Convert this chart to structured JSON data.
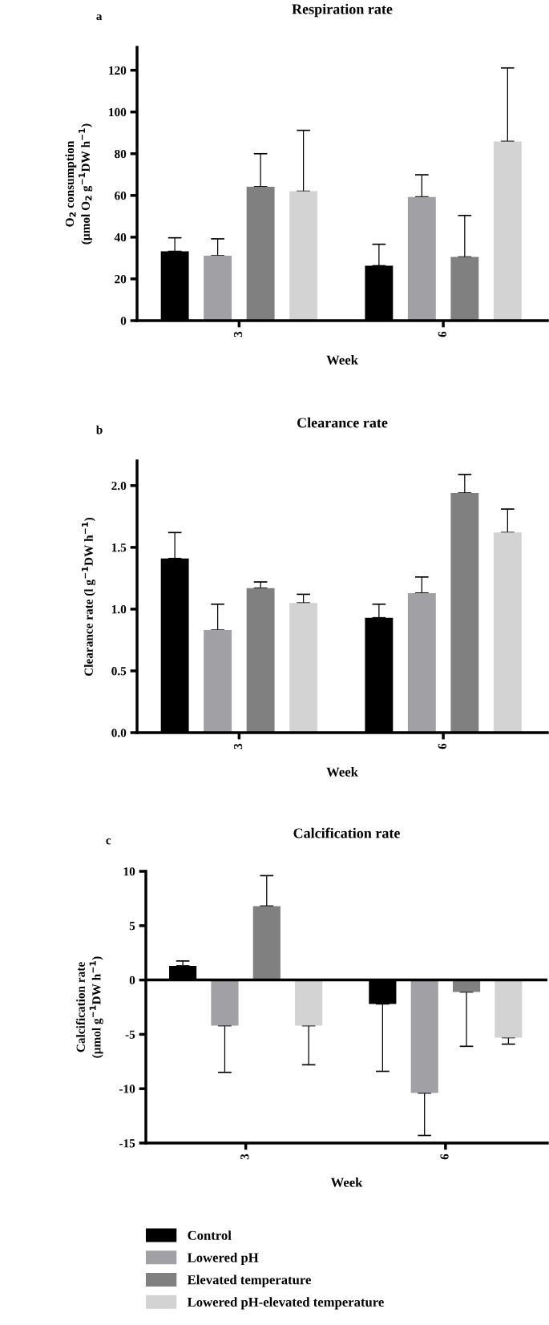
{
  "chart_data": [
    {
      "type": "bar",
      "title": "Respiration rate",
      "annotations": [
        "a"
      ],
      "xlabel": "Week",
      "ylabel": "O$_{2}$ consumption\n(µmol O$_{2}$ g$^{−1}$DW h$^{−1}$)",
      "categories": [
        "3",
        "6"
      ],
      "ylim": [
        0,
        131
      ],
      "yticks": [
        0,
        20,
        40,
        60,
        80,
        100,
        120
      ],
      "grid": false,
      "legend": false,
      "series": [
        {
          "color": "#000000",
          "values": [
            33.2,
            26.3
          ],
          "errors": [
            [
              33.2,
              39.7
            ],
            [
              26.3,
              36.6
            ]
          ]
        },
        {
          "color": "#a1a1a5",
          "values": [
            31.1,
            59.3
          ],
          "errors": [
            [
              31.1,
              39.2
            ],
            [
              59.3,
              69.9
            ]
          ]
        },
        {
          "color": "#808080",
          "values": [
            64.2,
            30.5
          ],
          "errors": [
            [
              64.2,
              80.0
            ],
            [
              30.5,
              50.4
            ]
          ]
        },
        {
          "color": "#d3d3d3",
          "values": [
            62.0,
            85.9
          ],
          "errors": [
            [
              62.0,
              91.2
            ],
            [
              85.9,
              121.1
            ]
          ]
        }
      ]
    },
    {
      "type": "bar",
      "title": "Clearance rate",
      "annotations": [
        "b"
      ],
      "xlabel": "Week",
      "ylabel": "Clearance rate (l g$^{−1}$DW h$^{−1}$)",
      "categories": [
        "3",
        "6"
      ],
      "ylim": [
        0,
        2.2
      ],
      "yticks": [
        {
          "value": 0,
          "label": "0.0"
        },
        0.5,
        {
          "value": 1,
          "label": "1.0"
        },
        1.5,
        {
          "value": 2,
          "label": "2.0"
        }
      ],
      "grid": false,
      "legend": false,
      "series": [
        {
          "color": "#000000",
          "values": [
            1.41,
            0.93
          ],
          "errors": [
            [
              1.41,
              1.62
            ],
            [
              0.93,
              1.04
            ]
          ]
        },
        {
          "color": "#a1a1a5",
          "values": [
            0.83,
            1.13
          ],
          "errors": [
            [
              0.83,
              1.04
            ],
            [
              1.13,
              1.26
            ]
          ]
        },
        {
          "color": "#808080",
          "values": [
            1.17,
            1.94
          ],
          "errors": [
            [
              1.17,
              1.22
            ],
            [
              1.94,
              2.09
            ]
          ]
        },
        {
          "color": "#d3d3d3",
          "values": [
            1.05,
            1.62
          ],
          "errors": [
            [
              1.05,
              1.12
            ],
            [
              1.62,
              1.81
            ]
          ]
        }
      ]
    },
    {
      "type": "bar",
      "title": "Calcification rate",
      "annotations": [
        "c"
      ],
      "xlabel": "Week",
      "ylabel": "Calcification rate\n(µmol g$^{−1}$DW h$^{−1}$)",
      "categories": [
        "3",
        "6"
      ],
      "ylim": [
        -15,
        10
      ],
      "yticks": [
        -15,
        -10,
        -5,
        0,
        5,
        10
      ],
      "grid": false,
      "legend": "bottom",
      "ref_lines": [
        {
          "axis": "y",
          "value": 0,
          "label": null,
          "color": "#000000"
        }
      ],
      "series": [
        {
          "name": "Control",
          "color": "#000000",
          "values": [
            1.3,
            -2.2
          ],
          "errors": [
            [
              1.3,
              1.75
            ],
            [
              -8.4,
              -2.2
            ]
          ]
        },
        {
          "name": "Lowered pH",
          "color": "#a1a1a5",
          "values": [
            -4.2,
            -10.4
          ],
          "errors": [
            [
              -8.5,
              -4.2
            ],
            [
              -14.3,
              -10.4
            ]
          ]
        },
        {
          "name": "Elevated temperature",
          "color": "#808080",
          "values": [
            6.8,
            -1.1
          ],
          "errors": [
            [
              6.8,
              9.6
            ],
            [
              -6.1,
              -1.1
            ]
          ]
        },
        {
          "name": "Lowered pH-elevated temperature",
          "color": "#d3d3d3",
          "values": [
            -4.2,
            -5.3
          ],
          "errors": [
            [
              -7.8,
              -4.2
            ],
            [
              -5.9,
              -5.3
            ]
          ]
        }
      ]
    }
  ]
}
